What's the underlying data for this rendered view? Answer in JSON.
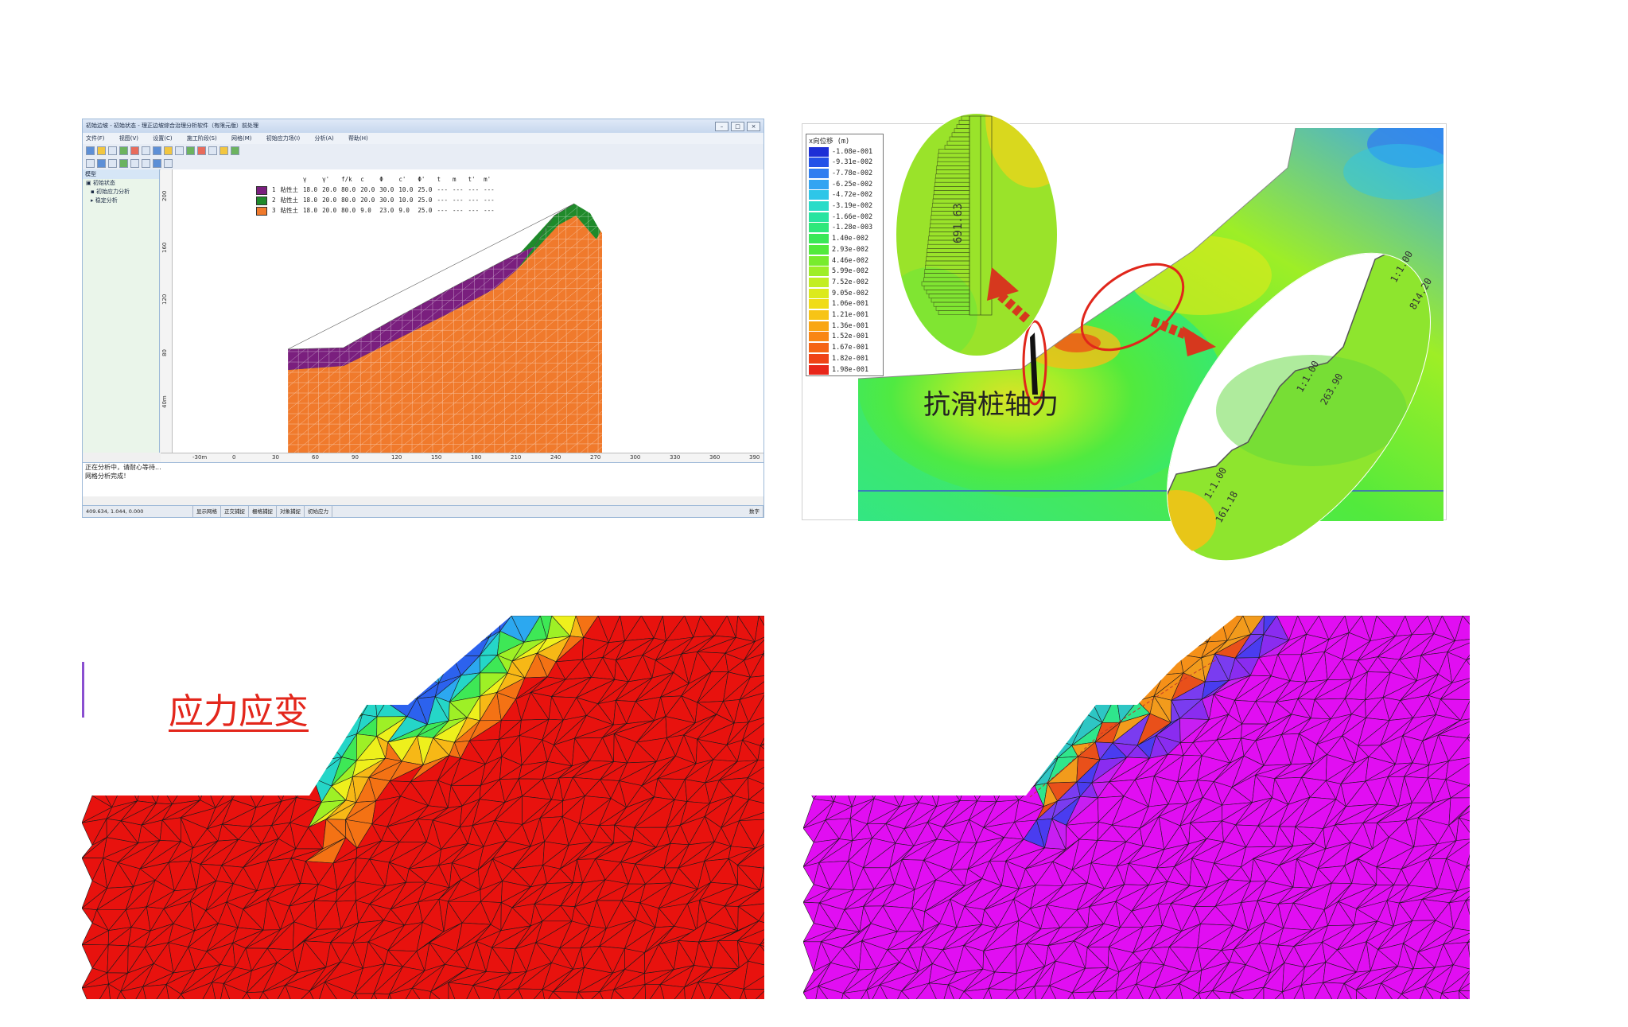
{
  "panel1": {
    "window_title": "初始边坡 - 初始状态 - 理正边坡综合治理分析软件（有限元版）前处理",
    "menu": [
      "文件(F)",
      "视图(V)",
      "设置(C)",
      "施工阶段(S)",
      "网格(M)",
      "初始应力场(I)",
      "分析(A)",
      "帮助(H)"
    ],
    "sidebar": {
      "header": "模型",
      "items": [
        "初始状态",
        "初始应力分析",
        "稳定分析"
      ]
    },
    "material_table": {
      "headers": [
        "",
        "",
        "γ",
        "γ'",
        "f/k",
        "c",
        "Φ",
        "c'",
        "Φ'",
        "t",
        "m",
        "t'",
        "m'"
      ],
      "rows": [
        {
          "no": "1",
          "name": "粘性土",
          "vals": [
            "18.0",
            "20.0",
            "80.0",
            "20.0",
            "30.0",
            "10.0",
            "25.0",
            "---",
            "---",
            "---",
            "---"
          ],
          "color": "#7a1f7e"
        },
        {
          "no": "2",
          "name": "粘性土",
          "vals": [
            "18.0",
            "20.0",
            "80.0",
            "20.0",
            "30.0",
            "10.0",
            "25.0",
            "---",
            "---",
            "---",
            "---"
          ],
          "color": "#1f8a2a"
        },
        {
          "no": "3",
          "name": "粘性土",
          "vals": [
            "18.0",
            "20.0",
            "80.0",
            "9.0",
            "23.0",
            "9.0",
            "25.0",
            "---",
            "---",
            "---",
            "---"
          ],
          "color": "#f07a2c"
        }
      ]
    },
    "x_ticks": [
      "-30m",
      "0",
      "30",
      "60",
      "90",
      "120",
      "150",
      "180",
      "210",
      "240",
      "270",
      "300",
      "330",
      "360",
      "390"
    ],
    "y_ticks": [
      "200",
      "160",
      "120",
      "80",
      "40m"
    ],
    "messages": [
      "正在分析中，请耐心等待...",
      "网格分析完成！"
    ],
    "status": [
      "409.634, 1.044, 0.000",
      "显示网格",
      "正交捕捉",
      "栅格捕捉",
      "对象捕捉",
      "初始应力",
      "数字"
    ]
  },
  "panel2": {
    "legend_title": "x向位移 (m)",
    "legend": [
      {
        "value": "-1.08e-001",
        "color": "#1d2fd6"
      },
      {
        "value": "-9.31e-002",
        "color": "#2352e8"
      },
      {
        "value": "-7.78e-002",
        "color": "#2f7df0"
      },
      {
        "value": "-6.25e-002",
        "color": "#33a4f2"
      },
      {
        "value": "-4.72e-002",
        "color": "#2ec6e8"
      },
      {
        "value": "-3.19e-002",
        "color": "#29dcc8"
      },
      {
        "value": "-1.66e-002",
        "color": "#28e4a0"
      },
      {
        "value": "-1.28e-003",
        "color": "#2ee87a"
      },
      {
        "value": "1.40e-002",
        "color": "#3ae857"
      },
      {
        "value": "2.93e-002",
        "color": "#52ea3c"
      },
      {
        "value": "4.46e-002",
        "color": "#78ec2d"
      },
      {
        "value": "5.99e-002",
        "color": "#9eee26"
      },
      {
        "value": "7.52e-002",
        "color": "#c2ee22"
      },
      {
        "value": "9.05e-002",
        "color": "#dcea1c"
      },
      {
        "value": "1.06e-001",
        "color": "#f0dc18"
      },
      {
        "value": "1.21e-001",
        "color": "#f7c416"
      },
      {
        "value": "1.36e-001",
        "color": "#f9a614"
      },
      {
        "value": "1.52e-001",
        "color": "#f98614"
      },
      {
        "value": "1.67e-001",
        "color": "#f56414"
      },
      {
        "value": "1.82e-001",
        "color": "#ef4316"
      },
      {
        "value": "1.98e-001",
        "color": "#e8261a"
      }
    ],
    "callout_label": "抗滑桩轴力",
    "pile_value": "691.63",
    "slope_ratios": [
      "1:1.00",
      "1:1.00",
      "1:1.00"
    ],
    "slope_values": [
      "161.18",
      "263.90",
      "814.20"
    ]
  },
  "panel3": {
    "label": "应力应变"
  },
  "colors": {
    "accent_red": "#e3261b",
    "soil_orange": "#f07a2c",
    "stress_red": "#e8120e",
    "strain_magenta": "#e10ef2"
  }
}
